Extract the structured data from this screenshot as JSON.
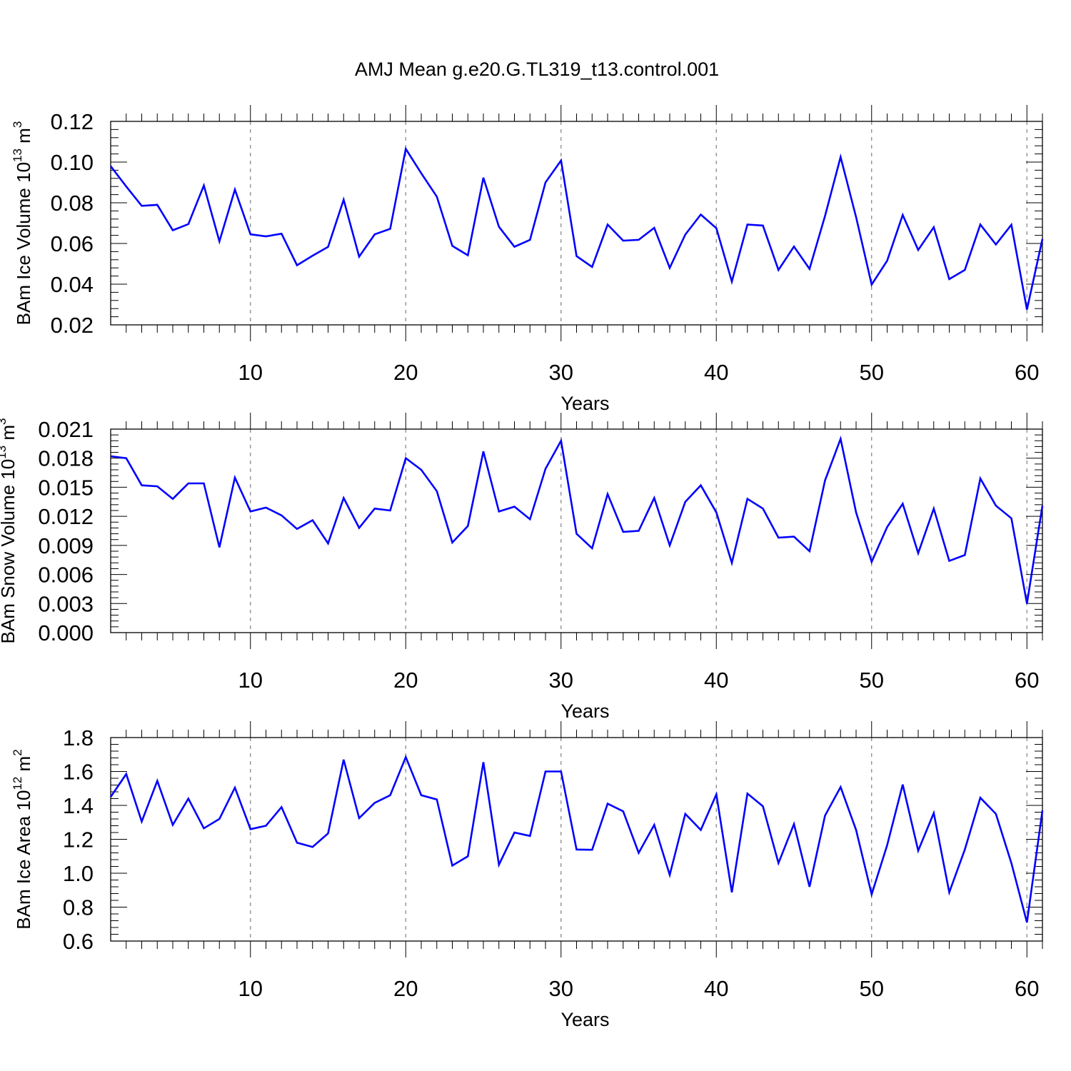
{
  "title": "AMJ Mean g.e20.G.TL319_t13.control.001",
  "colors": {
    "series": "#0000ff",
    "grid": "#808080",
    "axis": "#000000"
  },
  "chart_data": [
    {
      "type": "line",
      "ylabel": "BAm Ice Volume 10",
      "ylabel_sup": "13",
      "ylabel_unit": "m",
      "ylabel_unit_sup": "3",
      "xlabel": "Years",
      "xlim": [
        1,
        61
      ],
      "ylim": [
        0.02,
        0.12
      ],
      "ytick_labels": [
        "0.02",
        "0.04",
        "0.06",
        "0.08",
        "0.10",
        "0.12"
      ],
      "xtick_labels": [
        "10",
        "20",
        "30",
        "40",
        "50",
        "60"
      ],
      "grid": "vertical dashed at x=10,20,30,40,50,60",
      "x": [
        1,
        2,
        3,
        4,
        5,
        6,
        7,
        8,
        9,
        10,
        11,
        12,
        13,
        14,
        15,
        16,
        17,
        18,
        19,
        20,
        21,
        22,
        23,
        24,
        25,
        26,
        27,
        28,
        29,
        30,
        31,
        32,
        33,
        34,
        35,
        36,
        37,
        38,
        39,
        40,
        41,
        42,
        43,
        44,
        45,
        46,
        47,
        48,
        49,
        50,
        51,
        52,
        53,
        54,
        55,
        56,
        57,
        58,
        59,
        60,
        61
      ],
      "series": [
        {
          "values": [
            0.098,
            0.088,
            0.0785,
            0.079,
            0.0665,
            0.0695,
            0.0885,
            0.061,
            0.0865,
            0.0645,
            0.0635,
            0.0648,
            0.0493,
            0.054,
            0.0583,
            0.0815,
            0.0535,
            0.0645,
            0.0672,
            0.1065,
            0.0945,
            0.083,
            0.0588,
            0.0542,
            0.0923,
            0.0682,
            0.0584,
            0.0618,
            0.09,
            0.1008,
            0.0538,
            0.0485,
            0.0693,
            0.0614,
            0.0618,
            0.0677,
            0.048,
            0.0644,
            0.0742,
            0.0675,
            0.0413,
            0.0693,
            0.0688,
            0.047,
            0.0585,
            0.0475,
            0.0735,
            0.1025,
            0.073,
            0.0398,
            0.0515,
            0.074,
            0.0568,
            0.068,
            0.0425,
            0.047,
            0.0693,
            0.0595,
            0.0692,
            0.0275,
            0.0622
          ]
        }
      ]
    },
    {
      "type": "line",
      "ylabel": "BAm Snow Volume 10",
      "ylabel_sup": "13",
      "ylabel_unit": "m",
      "ylabel_unit_sup": "3",
      "xlabel": "Years",
      "xlim": [
        1,
        61
      ],
      "ylim": [
        0.0,
        0.021
      ],
      "ytick_labels": [
        "0.000",
        "0.003",
        "0.006",
        "0.009",
        "0.012",
        "0.015",
        "0.018",
        "0.021"
      ],
      "xtick_labels": [
        "10",
        "20",
        "30",
        "40",
        "50",
        "60"
      ],
      "grid": "vertical dashed at x=10,20,30,40,50,60",
      "x": [
        1,
        2,
        3,
        4,
        5,
        6,
        7,
        8,
        9,
        10,
        11,
        12,
        13,
        14,
        15,
        16,
        17,
        18,
        19,
        20,
        21,
        22,
        23,
        24,
        25,
        26,
        27,
        28,
        29,
        30,
        31,
        32,
        33,
        34,
        35,
        36,
        37,
        38,
        39,
        40,
        41,
        42,
        43,
        44,
        45,
        46,
        47,
        48,
        49,
        50,
        51,
        52,
        53,
        54,
        55,
        56,
        57,
        58,
        59,
        60,
        61
      ],
      "series": [
        {
          "values": [
            0.0182,
            0.018,
            0.0152,
            0.0151,
            0.0138,
            0.0154,
            0.0154,
            0.0088,
            0.016,
            0.0125,
            0.0129,
            0.0121,
            0.0107,
            0.0116,
            0.0092,
            0.0139,
            0.0108,
            0.0128,
            0.0126,
            0.018,
            0.0168,
            0.0146,
            0.0093,
            0.011,
            0.0187,
            0.0125,
            0.013,
            0.0117,
            0.0169,
            0.0198,
            0.0102,
            0.0087,
            0.0143,
            0.0104,
            0.0105,
            0.0139,
            0.009,
            0.0135,
            0.0152,
            0.0124,
            0.0072,
            0.0138,
            0.0128,
            0.0098,
            0.0099,
            0.0084,
            0.0157,
            0.02,
            0.0124,
            0.0073,
            0.0109,
            0.0133,
            0.0082,
            0.0128,
            0.0074,
            0.008,
            0.0159,
            0.0131,
            0.0118,
            0.003,
            0.0131
          ]
        }
      ]
    },
    {
      "type": "line",
      "ylabel": "BAm Ice Area 10",
      "ylabel_sup": "12",
      "ylabel_unit": "m",
      "ylabel_unit_sup": "2",
      "xlabel": "Years",
      "xlim": [
        1,
        61
      ],
      "ylim": [
        0.6,
        1.8
      ],
      "ytick_labels": [
        "0.6",
        "0.8",
        "1.0",
        "1.2",
        "1.4",
        "1.6",
        "1.8"
      ],
      "xtick_labels": [
        "10",
        "20",
        "30",
        "40",
        "50",
        "60"
      ],
      "grid": "vertical dashed at x=10,20,30,40,50,60",
      "x": [
        1,
        2,
        3,
        4,
        5,
        6,
        7,
        8,
        9,
        10,
        11,
        12,
        13,
        14,
        15,
        16,
        17,
        18,
        19,
        20,
        21,
        22,
        23,
        24,
        25,
        26,
        27,
        28,
        29,
        30,
        31,
        32,
        33,
        34,
        35,
        36,
        37,
        38,
        39,
        40,
        41,
        42,
        43,
        44,
        45,
        46,
        47,
        48,
        49,
        50,
        51,
        52,
        53,
        54,
        55,
        56,
        57,
        58,
        59,
        60,
        61
      ],
      "series": [
        {
          "values": [
            1.45,
            1.585,
            1.305,
            1.545,
            1.285,
            1.44,
            1.265,
            1.32,
            1.505,
            1.26,
            1.28,
            1.39,
            1.18,
            1.155,
            1.235,
            1.67,
            1.325,
            1.415,
            1.46,
            1.685,
            1.46,
            1.435,
            1.045,
            1.1,
            1.655,
            1.05,
            1.24,
            1.22,
            1.6,
            1.6,
            1.14,
            1.138,
            1.41,
            1.365,
            1.12,
            1.285,
            0.99,
            1.35,
            1.255,
            1.465,
            0.887,
            1.47,
            1.395,
            1.06,
            1.29,
            0.92,
            1.34,
            1.508,
            1.255,
            0.875,
            1.165,
            1.523,
            1.133,
            1.355,
            0.887,
            1.14,
            1.445,
            1.35,
            1.06,
            0.71,
            1.37
          ]
        }
      ]
    }
  ]
}
